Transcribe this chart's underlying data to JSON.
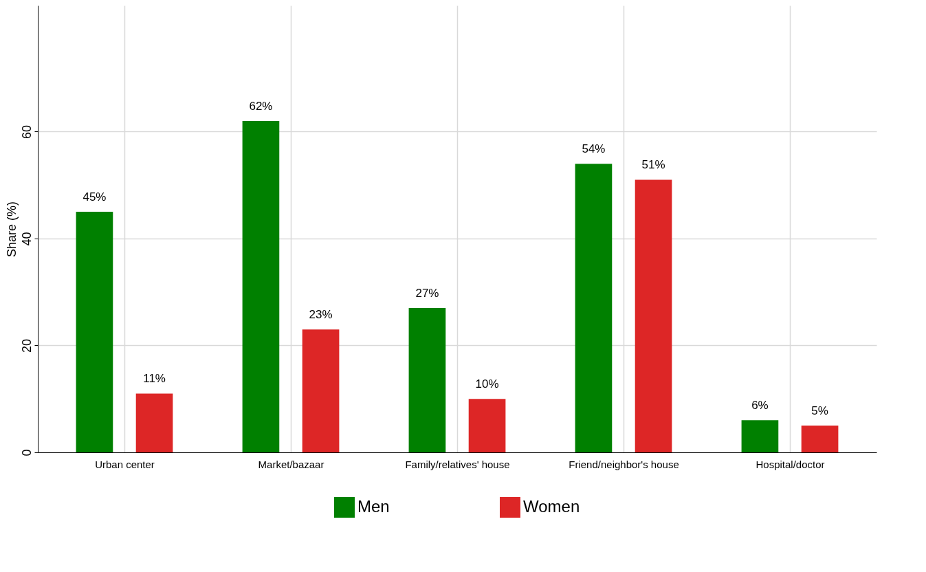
{
  "chart_data": {
    "type": "bar",
    "ylabel": "Share (%)",
    "categories": [
      "Urban center",
      "Market/bazaar",
      "Family/relatives' house",
      "Friend/neighbor's house",
      "Hospital/doctor"
    ],
    "series": [
      {
        "name": "Men",
        "color": "#008000",
        "values": [
          45,
          62,
          27,
          54,
          6
        ],
        "value_labels": [
          "45%",
          "62%",
          "27%",
          "54%",
          "6%"
        ]
      },
      {
        "name": "Women",
        "color": "#dd2626",
        "values": [
          11,
          23,
          10,
          51,
          5
        ],
        "value_labels": [
          "11%",
          "23%",
          "10%",
          "51%",
          "5%"
        ]
      }
    ],
    "ylim": [
      0,
      83.6
    ],
    "yticks": [
      0,
      20,
      40,
      60
    ],
    "grid": true,
    "legend": "bottom"
  }
}
